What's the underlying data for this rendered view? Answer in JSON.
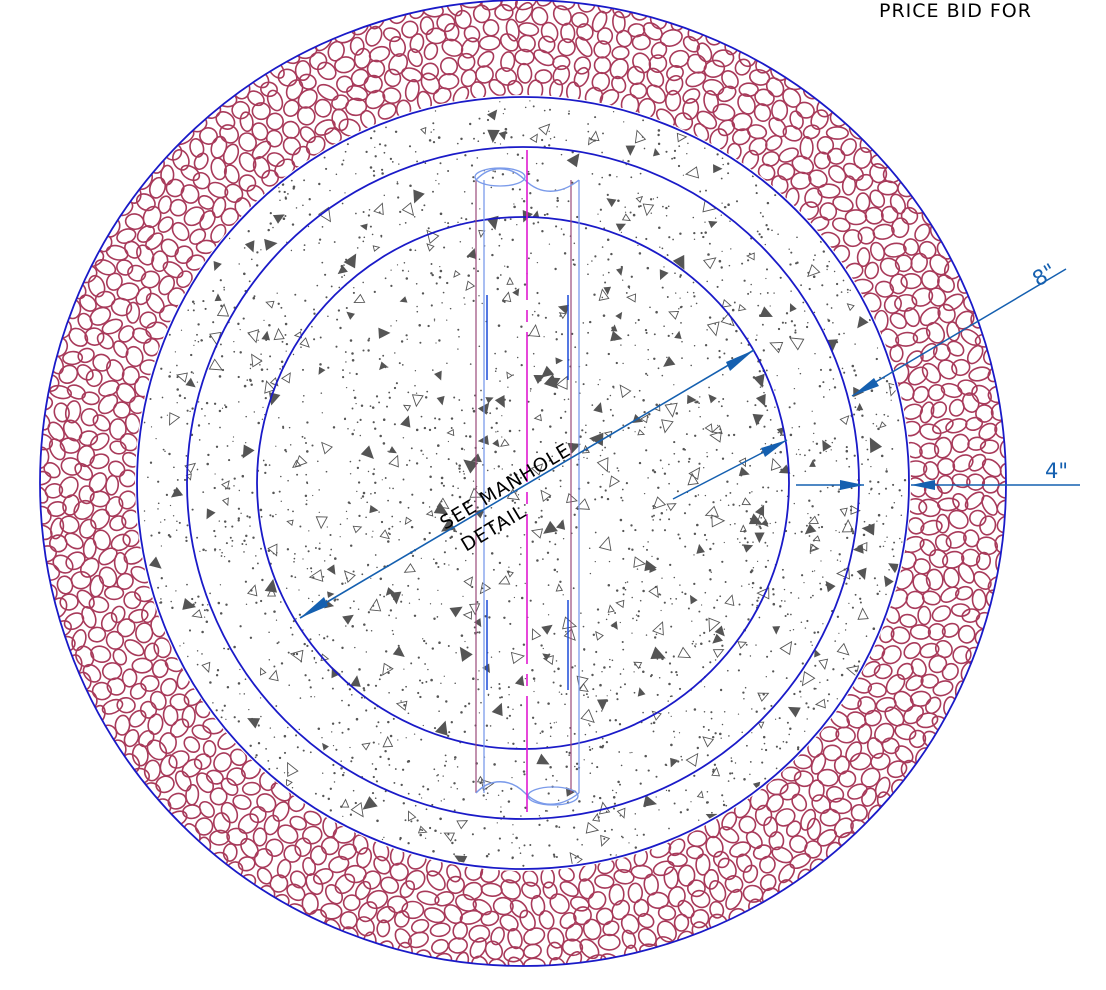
{
  "header_note": "PRICE  BID  FOR",
  "label_line1": "SEE MANHOLE",
  "label_line2": "DETAIL",
  "dim_outer": "8\"",
  "dim_inner": "4\"",
  "colors": {
    "ring_outline": "#1a1ac8",
    "stone": "#a83a5a",
    "concrete_speckle": "#555555",
    "dimension": "#1560b0",
    "pipe": "#7b9bea",
    "centerline": "#e01ad0",
    "pipe_wall": "#9a4a7a"
  },
  "icons": {
    "stone_fill": "circle-cluster-pattern",
    "concrete_fill": "speckle-triangle-pattern",
    "arrowhead": "filled-arrow-icon"
  }
}
